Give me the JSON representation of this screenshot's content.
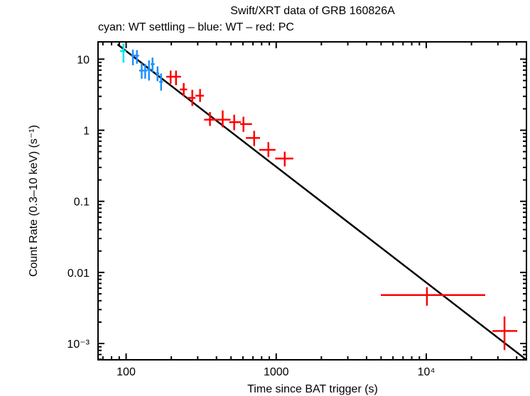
{
  "chart_data": {
    "type": "scatter",
    "title": "Swift/XRT data of GRB 160826A",
    "subtitle": "cyan: WT settling – blue: WT – red: PC",
    "xlabel": "Time since BAT trigger (s)",
    "ylabel": "Count Rate (0.3–10 keV) (s⁻¹)",
    "xscale": "log",
    "yscale": "log",
    "xlim": [
      65,
      46500
    ],
    "ylim": [
      0.00059,
      17.5
    ],
    "grid": false,
    "legend": "none",
    "x_ticks": [
      {
        "value": 100,
        "label": "100"
      },
      {
        "value": 1000,
        "label": "1000"
      },
      {
        "value": 10000,
        "label": "10⁴"
      }
    ],
    "y_ticks": [
      {
        "value": 10,
        "label": "10"
      },
      {
        "value": 1,
        "label": "1"
      },
      {
        "value": 0.1,
        "label": "0.1"
      },
      {
        "value": 0.01,
        "label": "0.01"
      },
      {
        "value": 0.001,
        "label": "10⁻³"
      }
    ],
    "series": [
      {
        "name": "WT settling",
        "color": "#00e5ee",
        "points": [
          {
            "t": 96,
            "t_lo": 91,
            "t_hi": 100,
            "rate": 13.0,
            "rate_lo": 8.9,
            "rate_hi": 16.5
          }
        ]
      },
      {
        "name": "WT",
        "color": "#1e90ff",
        "points": [
          {
            "t": 111,
            "t_lo": 108,
            "t_hi": 114,
            "rate": 11.2,
            "rate_lo": 8.2,
            "rate_hi": 13.6
          },
          {
            "t": 118,
            "t_lo": 114,
            "t_hi": 122,
            "rate": 11.2,
            "rate_lo": 8.6,
            "rate_hi": 13.4
          },
          {
            "t": 127,
            "t_lo": 122,
            "t_hi": 131,
            "rate": 6.9,
            "rate_lo": 5.3,
            "rate_hi": 8.8
          },
          {
            "t": 134,
            "t_lo": 131,
            "t_hi": 138,
            "rate": 6.9,
            "rate_lo": 5.3,
            "rate_hi": 8.6
          },
          {
            "t": 142,
            "t_lo": 138,
            "t_hi": 146,
            "rate": 7.1,
            "rate_lo": 5.0,
            "rate_hi": 9.6
          },
          {
            "t": 150,
            "t_lo": 146,
            "t_hi": 155,
            "rate": 8.5,
            "rate_lo": 6.6,
            "rate_hi": 10.5
          },
          {
            "t": 162,
            "t_lo": 157,
            "t_hi": 166,
            "rate": 6.3,
            "rate_lo": 4.9,
            "rate_hi": 7.9
          },
          {
            "t": 171,
            "t_lo": 166,
            "t_hi": 176,
            "rate": 4.8,
            "rate_lo": 3.6,
            "rate_hi": 6.3
          }
        ]
      },
      {
        "name": "PC",
        "color": "#ff0000",
        "points": [
          {
            "t": 198,
            "t_lo": 185,
            "t_hi": 216,
            "rate": 5.66,
            "rate_lo": 4.5,
            "rate_hi": 6.9
          },
          {
            "t": 215,
            "t_lo": 205,
            "t_hi": 232,
            "rate": 5.66,
            "rate_lo": 4.3,
            "rate_hi": 6.9
          },
          {
            "t": 242,
            "t_lo": 228,
            "t_hi": 255,
            "rate": 3.75,
            "rate_lo": 3.0,
            "rate_hi": 4.6
          },
          {
            "t": 276,
            "t_lo": 255,
            "t_hi": 290,
            "rate": 2.85,
            "rate_lo": 2.2,
            "rate_hi": 3.7
          },
          {
            "t": 311,
            "t_lo": 290,
            "t_hi": 330,
            "rate": 3.06,
            "rate_lo": 2.5,
            "rate_hi": 3.8
          },
          {
            "t": 362,
            "t_lo": 331,
            "t_hi": 404,
            "rate": 1.41,
            "rate_lo": 1.15,
            "rate_hi": 1.8
          },
          {
            "t": 440,
            "t_lo": 404,
            "t_hi": 496,
            "rate": 1.41,
            "rate_lo": 1.1,
            "rate_hi": 1.9
          },
          {
            "t": 525,
            "t_lo": 486,
            "t_hi": 582,
            "rate": 1.3,
            "rate_lo": 1.0,
            "rate_hi": 1.65
          },
          {
            "t": 605,
            "t_lo": 576,
            "t_hi": 690,
            "rate": 1.22,
            "rate_lo": 0.95,
            "rate_hi": 1.55
          },
          {
            "t": 713,
            "t_lo": 628,
            "t_hi": 780,
            "rate": 0.78,
            "rate_lo": 0.6,
            "rate_hi": 0.98
          },
          {
            "t": 887,
            "t_lo": 770,
            "t_hi": 990,
            "rate": 0.53,
            "rate_lo": 0.42,
            "rate_hi": 0.68
          },
          {
            "t": 1140,
            "t_lo": 985,
            "t_hi": 1300,
            "rate": 0.4,
            "rate_lo": 0.31,
            "rate_hi": 0.5
          },
          {
            "t": 10100,
            "t_lo": 4980,
            "t_hi": 24700,
            "rate": 0.0048,
            "rate_lo": 0.0034,
            "rate_hi": 0.0062
          },
          {
            "t": 33200,
            "t_lo": 27600,
            "t_hi": 40400,
            "rate": 0.0015,
            "rate_lo": 0.00081,
            "rate_hi": 0.0024
          }
        ]
      }
    ],
    "fit": {
      "name": "power-law fit",
      "color": "#000000",
      "points": [
        {
          "t": 87.7,
          "rate": 16.1
        },
        {
          "t": 46500,
          "rate": 0.00059
        }
      ]
    }
  }
}
